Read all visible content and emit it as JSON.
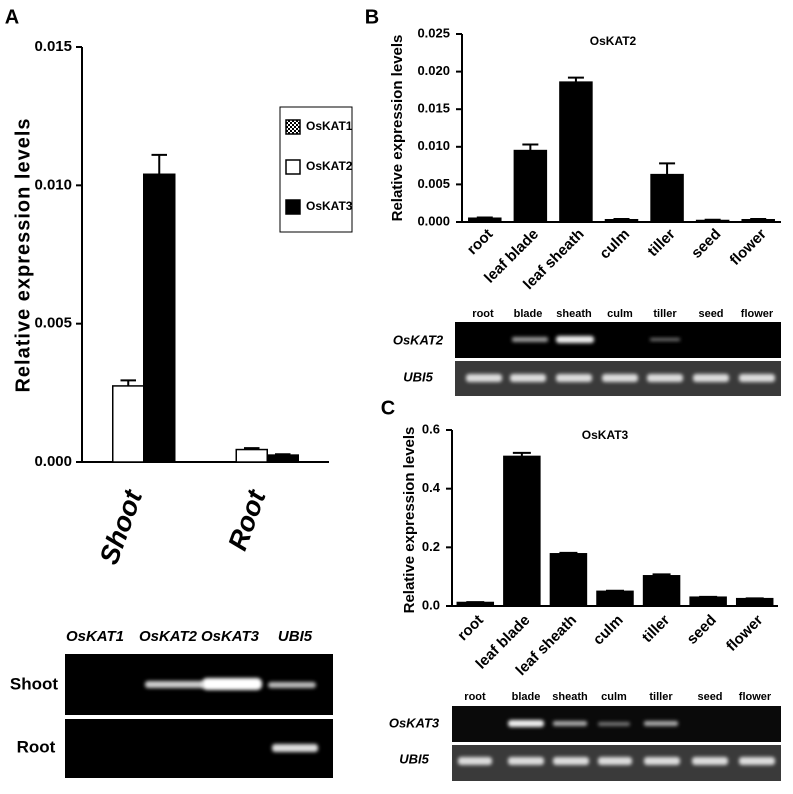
{
  "chart_data": [
    {
      "type": "bar",
      "panel": "A",
      "ylabel": "Relative expression levels",
      "categories": [
        "Shoot",
        "Root"
      ],
      "series": [
        {
          "name": "OsKAT1",
          "color": "#ffffff",
          "hatch": true,
          "values": [
            0,
            0
          ]
        },
        {
          "name": "OsKAT2",
          "color": "#ffffff",
          "values": [
            0.00275,
            0.00045
          ],
          "errors": [
            0.0002,
            5e-05
          ]
        },
        {
          "name": "OsKAT3",
          "color": "#000000",
          "values": [
            0.0104,
            0.00025
          ],
          "errors": [
            0.0007,
            3e-05
          ]
        }
      ],
      "ylim": [
        0,
        0.015
      ],
      "yticks": [
        {
          "value": 0,
          "label": "0.000"
        },
        {
          "value": 0.005,
          "label": "0.005"
        },
        {
          "value": 0.01,
          "label": "0.010"
        },
        {
          "value": 0.015,
          "label": "0.015"
        }
      ],
      "legend": "upper right"
    },
    {
      "type": "bar",
      "panel": "B",
      "title": "OsKAT2",
      "ylabel": "Relative expression levels",
      "categories": [
        "root",
        "leaf blade",
        "leaf sheath",
        "culm",
        "tiller",
        "seed",
        "flower"
      ],
      "series": [
        {
          "color": "#000000",
          "values": [
            0.0005,
            0.0095,
            0.0186,
            0.0003,
            0.0063,
            0.0002,
            0.0003
          ],
          "errors": [
            0.0001,
            0.0008,
            0.0006,
            0.0001,
            0.0015,
            0.0001,
            0.0001
          ]
        }
      ],
      "ylim": [
        0,
        0.025
      ],
      "yticks": [
        {
          "value": 0,
          "label": "0.000"
        },
        {
          "value": 0.005,
          "label": "0.005"
        },
        {
          "value": 0.01,
          "label": "0.010"
        },
        {
          "value": 0.015,
          "label": "0.015"
        },
        {
          "value": 0.02,
          "label": "0.020"
        },
        {
          "value": 0.025,
          "label": "0.025"
        }
      ]
    },
    {
      "type": "bar",
      "panel": "C",
      "title": "OsKAT3",
      "ylabel": "Relative expression levels",
      "categories": [
        "root",
        "leaf blade",
        "leaf sheath",
        "culm",
        "tiller",
        "seed",
        "flower"
      ],
      "series": [
        {
          "color": "#000000",
          "values": [
            0.012,
            0.51,
            0.178,
            0.05,
            0.103,
            0.03,
            0.025
          ],
          "errors": [
            0.001,
            0.012,
            0.003,
            0.002,
            0.005,
            0.001,
            0.001
          ]
        }
      ],
      "ylim": [
        0,
        0.6
      ],
      "yticks": [
        {
          "value": 0,
          "label": "0.0"
        },
        0.2,
        0.4,
        0.6
      ]
    }
  ],
  "gels": [
    {
      "columns": [
        "OsKAT1",
        "OsKAT2",
        "OsKAT3",
        "UBI5"
      ],
      "rows": [
        "Shoot",
        "Root"
      ]
    },
    {
      "columns": [
        "root",
        "blade",
        "sheath",
        "culm",
        "tiller",
        "seed",
        "flower"
      ],
      "rows": [
        "OsKAT2",
        "UBI5"
      ]
    },
    {
      "columns": [
        "root",
        "blade",
        "sheath",
        "culm",
        "tiller",
        "seed",
        "flower"
      ],
      "rows": [
        "OsKAT3",
        "UBI5"
      ]
    }
  ]
}
